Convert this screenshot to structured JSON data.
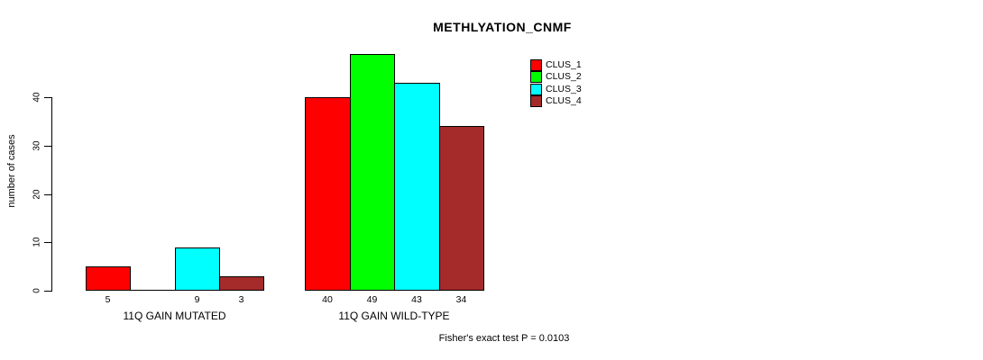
{
  "title": "METHLYATION_CNMF",
  "footnote": "Fisher's exact test P = 0.0103",
  "chart_data": {
    "type": "bar",
    "title": "METHLYATION_CNMF",
    "xlabel": "",
    "ylabel": "number of cases",
    "ylim": [
      0,
      40
    ],
    "yticks": [
      0,
      10,
      20,
      30,
      40
    ],
    "grid": false,
    "legend_position": "top-right",
    "categories": [
      "11Q GAIN MUTATED",
      "11Q GAIN WILD-TYPE"
    ],
    "series": [
      {
        "name": "CLUS_1",
        "color": "#FF0000",
        "values": [
          5,
          40
        ]
      },
      {
        "name": "CLUS_2",
        "color": "#00FF00",
        "values": [
          0,
          49
        ]
      },
      {
        "name": "CLUS_3",
        "color": "#00FFFF",
        "values": [
          9,
          43
        ]
      },
      {
        "name": "CLUS_4",
        "color": "#A52A2A",
        "values": [
          3,
          34
        ]
      }
    ],
    "bar_value_labels": [
      [
        "5",
        "",
        "9",
        "3"
      ],
      [
        "40",
        "49",
        "43",
        "34"
      ]
    ],
    "annotation": "Fisher's exact test P = 0.0103"
  }
}
